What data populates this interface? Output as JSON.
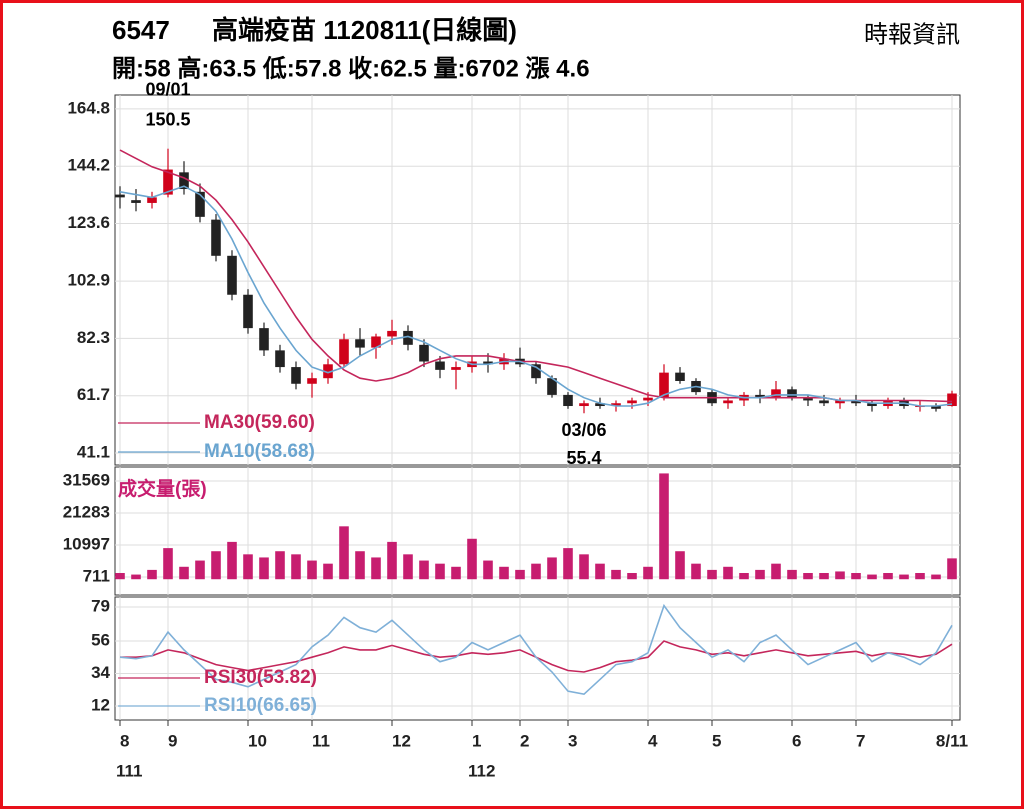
{
  "header": {
    "code": "6547",
    "title": "高端疫苗 1120811(日線圖)",
    "source": "時報資訊",
    "stats": "開:58 高:63.5 低:57.8 收:62.5 量:6702 漲 4.6"
  },
  "chart_data": [
    {
      "type": "candlestick",
      "up_color": "#d0021b",
      "down_color": "#222222",
      "grid": true,
      "categories": [
        "8",
        null,
        null,
        "9",
        null,
        null,
        null,
        null,
        "10",
        null,
        null,
        null,
        "11",
        null,
        null,
        null,
        null,
        "12",
        null,
        null,
        null,
        null,
        "1",
        null,
        null,
        "2",
        null,
        null,
        "3",
        null,
        null,
        null,
        null,
        "4",
        null,
        null,
        null,
        "5",
        null,
        null,
        null,
        null,
        "6",
        null,
        null,
        null,
        "7",
        null,
        null,
        null,
        null,
        null,
        "8/11"
      ],
      "categories2": [
        "111",
        null,
        null,
        null,
        null,
        null,
        null,
        null,
        null,
        null,
        null,
        null,
        null,
        null,
        null,
        null,
        null,
        null,
        null,
        null,
        null,
        null,
        "112",
        null,
        null,
        null,
        null,
        null,
        null,
        null,
        null,
        null,
        null,
        null,
        null,
        null,
        null,
        null,
        null,
        null,
        null,
        null,
        null,
        null,
        null,
        null,
        null,
        null,
        null,
        null,
        null,
        null,
        null
      ],
      "open": [
        134,
        132,
        131,
        134,
        142,
        135,
        125,
        112,
        98,
        86,
        78,
        72,
        66,
        68,
        73,
        82,
        79,
        83,
        85,
        80,
        74,
        71,
        72,
        74,
        73,
        75,
        73,
        68,
        62,
        58,
        59,
        58,
        59,
        60,
        61,
        70,
        67,
        63,
        59,
        60,
        62,
        61,
        64,
        61,
        60,
        59,
        60,
        59,
        58,
        60,
        58,
        58,
        58
      ],
      "high": [
        137,
        136,
        135,
        150.5,
        146,
        138,
        127,
        114,
        100,
        88,
        80,
        74,
        70,
        75,
        84,
        86,
        84,
        89,
        87,
        82,
        76,
        74,
        76,
        77,
        77,
        79,
        74,
        69,
        63,
        60,
        61,
        60,
        61,
        63,
        73,
        72,
        68,
        64,
        61,
        63,
        64,
        67,
        65,
        62,
        62,
        61,
        62,
        60,
        61,
        61,
        60,
        59,
        63.5
      ],
      "low": [
        129,
        128,
        129,
        133,
        134,
        124,
        110,
        96,
        84,
        76,
        70,
        64,
        61,
        66,
        72,
        76,
        75,
        80,
        78,
        72,
        68,
        64,
        70,
        70,
        71,
        72,
        66,
        61,
        57,
        55.4,
        57,
        56,
        57,
        58,
        60,
        66,
        62,
        58,
        57,
        58,
        59,
        60,
        60,
        58,
        58,
        57,
        58,
        56,
        57,
        57,
        56,
        56,
        57.8
      ],
      "close": [
        133,
        131,
        133,
        143,
        136,
        126,
        112,
        98,
        86,
        78,
        72,
        66,
        68,
        73,
        82,
        79,
        83,
        85,
        80,
        74,
        71,
        72,
        74,
        73,
        75,
        73,
        68,
        62,
        58,
        59,
        58,
        59,
        60,
        61,
        70,
        67,
        63,
        59,
        60,
        62,
        61,
        64,
        61,
        60,
        59,
        60,
        59,
        58,
        60,
        58,
        58,
        57,
        62.5
      ],
      "series": [
        {
          "name": "MA30(59.60)",
          "color": "#c4265b",
          "values": [
            150,
            147,
            144,
            142,
            140,
            137,
            132,
            125,
            117,
            108,
            99,
            90,
            82,
            76,
            71,
            68,
            67,
            68,
            70,
            73,
            75,
            76,
            76,
            76,
            75,
            74,
            74,
            73,
            72,
            70,
            68,
            66,
            64,
            62,
            61,
            61,
            61,
            61,
            61,
            61,
            61,
            61,
            61,
            61,
            61,
            60,
            60,
            60,
            60,
            60,
            60,
            59.8,
            59.6
          ]
        },
        {
          "name": "MA10(58.68)",
          "color": "#6aa5d0",
          "values": [
            135,
            134,
            133,
            135,
            137,
            134,
            128,
            118,
            106,
            95,
            86,
            78,
            72,
            70,
            72,
            76,
            79,
            82,
            83,
            81,
            78,
            75,
            73,
            73,
            74,
            74,
            72,
            68,
            64,
            61,
            59,
            58,
            58,
            59,
            62,
            64,
            65,
            64,
            62,
            61,
            61,
            62,
            62,
            62,
            61,
            60,
            60,
            59,
            59,
            59,
            58,
            58,
            58.68
          ]
        }
      ],
      "annotations": [
        {
          "label": "09/01",
          "value": 150.5
        },
        {
          "label": "03/06",
          "value": 55.4
        }
      ],
      "ylim": [
        36.8,
        169.8
      ],
      "yticks": [
        41.1,
        61.7,
        82.3,
        102.9,
        123.6,
        144.2,
        164.8
      ]
    },
    {
      "type": "bar",
      "title": "成交量(張)",
      "color": "#c71d6f",
      "grid": true,
      "values": [
        2000,
        1500,
        3000,
        10000,
        4000,
        6000,
        9000,
        12000,
        8000,
        7000,
        9000,
        8000,
        6000,
        5000,
        17000,
        9000,
        7000,
        12000,
        8000,
        6000,
        5000,
        4000,
        13000,
        6000,
        4000,
        3000,
        5000,
        7000,
        10000,
        8000,
        5000,
        3000,
        2000,
        4000,
        34000,
        9000,
        5000,
        3000,
        4000,
        2000,
        3000,
        5000,
        3000,
        2000,
        2000,
        2500,
        2000,
        1500,
        2000,
        1500,
        2000,
        1500,
        6702
      ],
      "ylim": [
        -5067,
        36063
      ],
      "yticks": [
        711,
        10997,
        21283,
        31569
      ]
    },
    {
      "type": "line",
      "grid": true,
      "series": [
        {
          "name": "RSI30(53.82)",
          "color": "#c4265b",
          "values": [
            45,
            45,
            46,
            50,
            48,
            44,
            40,
            38,
            36,
            38,
            40,
            42,
            45,
            48,
            52,
            50,
            50,
            53,
            50,
            47,
            45,
            46,
            48,
            47,
            48,
            50,
            45,
            40,
            36,
            35,
            38,
            42,
            43,
            45,
            56,
            52,
            50,
            47,
            48,
            46,
            48,
            50,
            48,
            46,
            47,
            48,
            49,
            46,
            48,
            47,
            45,
            47,
            53.82
          ]
        },
        {
          "name": "RSI10(66.65)",
          "color": "#7fb0d8",
          "values": [
            45,
            44,
            46,
            62,
            50,
            40,
            30,
            28,
            25,
            30,
            35,
            40,
            52,
            60,
            72,
            65,
            62,
            70,
            60,
            50,
            42,
            45,
            55,
            50,
            55,
            60,
            45,
            35,
            22,
            20,
            30,
            40,
            42,
            48,
            80,
            65,
            55,
            45,
            50,
            42,
            55,
            60,
            50,
            40,
            45,
            50,
            55,
            42,
            48,
            45,
            40,
            48,
            66.65
          ]
        }
      ],
      "ylim": [
        2.5,
        85.8
      ],
      "yticks": [
        12,
        34,
        56,
        79
      ]
    }
  ]
}
